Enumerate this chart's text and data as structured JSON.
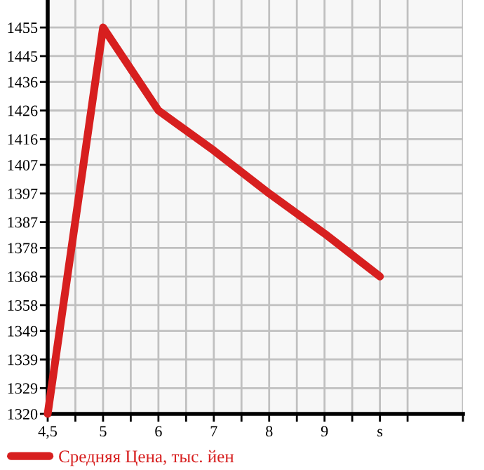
{
  "chart_data": {
    "type": "line",
    "categories": [
      "4,5",
      "5",
      "6",
      "7",
      "8",
      "9",
      "s"
    ],
    "series": [
      {
        "name": "Средняя Цена, тыс. йен",
        "color": "#d71f1f",
        "values": [
          1320,
          1455,
          1426,
          1412,
          1397,
          1383,
          1368
        ]
      }
    ],
    "ylim": [
      1320,
      1464.6
    ],
    "yticks": [
      1320,
      1329,
      1339,
      1349,
      1358,
      1368,
      1378,
      1387,
      1397,
      1407,
      1416,
      1426,
      1436,
      1445,
      1455
    ],
    "grid": true,
    "legend": "bottom left",
    "marker": "none",
    "line_style": "solid"
  }
}
